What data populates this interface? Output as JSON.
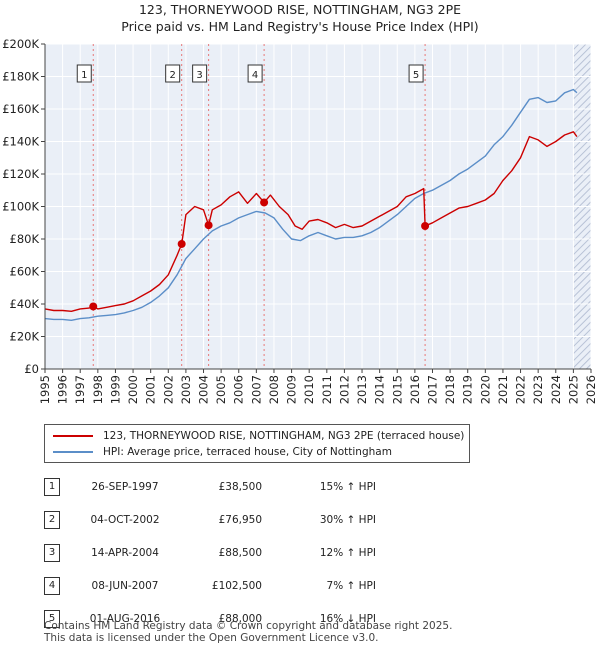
{
  "title_line1": "123, THORNEYWOOD RISE, NOTTINGHAM, NG3 2PE",
  "title_line2": "Price paid vs. HM Land Registry's House Price Index (HPI)",
  "colors": {
    "property": "#cc0000",
    "hpi": "#5b8ec8",
    "grid": "#cfd6e3",
    "plot_bg": "#eaeff7",
    "future_hatch": "#b8c2d6",
    "marker_line": "#e87878"
  },
  "legend": {
    "property_label": "123, THORNEYWOOD RISE, NOTTINGHAM, NG3 2PE (terraced house)",
    "hpi_label": "HPI: Average price, terraced house, City of Nottingham"
  },
  "sales": [
    {
      "num": "1",
      "date": "26-SEP-1997",
      "price": "£38,500",
      "hpi_diff": "15% ↑ HPI"
    },
    {
      "num": "2",
      "date": "04-OCT-2002",
      "price": "£76,950",
      "hpi_diff": "30% ↑ HPI"
    },
    {
      "num": "3",
      "date": "14-APR-2004",
      "price": "£88,500",
      "hpi_diff": "12% ↑ HPI"
    },
    {
      "num": "4",
      "date": "08-JUN-2007",
      "price": "£102,500",
      "hpi_diff": "7% ↑ HPI"
    },
    {
      "num": "5",
      "date": "01-AUG-2016",
      "price": "£88,000",
      "hpi_diff": "16% ↓ HPI"
    }
  ],
  "footer_line1": "Contains HM Land Registry data © Crown copyright and database right 2025.",
  "footer_line2": "This data is licensed under the Open Government Licence v3.0.",
  "chart_data": {
    "type": "line",
    "title": "123, THORNEYWOOD RISE, NOTTINGHAM, NG3 2PE",
    "subtitle": "Price paid vs. HM Land Registry's House Price Index (HPI)",
    "xlabel": "",
    "ylabel": "",
    "xlim": [
      1995,
      2026
    ],
    "ylim": [
      0,
      200000
    ],
    "x_ticks": [
      1995,
      1996,
      1997,
      1998,
      1999,
      2000,
      2001,
      2002,
      2003,
      2004,
      2005,
      2006,
      2007,
      2008,
      2009,
      2010,
      2011,
      2012,
      2013,
      2014,
      2015,
      2016,
      2017,
      2018,
      2019,
      2020,
      2021,
      2022,
      2023,
      2024,
      2025,
      2026
    ],
    "y_ticks": [
      0,
      20000,
      40000,
      60000,
      80000,
      100000,
      120000,
      140000,
      160000,
      180000,
      200000
    ],
    "y_tick_labels": [
      "£0",
      "£20K",
      "£40K",
      "£60K",
      "£80K",
      "£100K",
      "£120K",
      "£140K",
      "£160K",
      "£180K",
      "£200K"
    ],
    "future_start": 2025.0,
    "grid": true,
    "sale_markers": [
      {
        "label": "1",
        "x": 1997.74,
        "y": 38500
      },
      {
        "label": "2",
        "x": 2002.76,
        "y": 76950
      },
      {
        "label": "3",
        "x": 2004.29,
        "y": 88500
      },
      {
        "label": "4",
        "x": 2007.44,
        "y": 102500
      },
      {
        "label": "5",
        "x": 2016.58,
        "y": 88000
      }
    ],
    "series": [
      {
        "name": "123, THORNEYWOOD RISE, NOTTINGHAM, NG3 2PE (terraced house)",
        "color": "#cc0000",
        "x": [
          1995.0,
          1995.5,
          1996.0,
          1996.5,
          1997.0,
          1997.5,
          1997.74,
          1998.0,
          1998.5,
          1999.0,
          1999.5,
          2000.0,
          2000.5,
          2001.0,
          2001.5,
          2002.0,
          2002.5,
          2002.76,
          2003.0,
          2003.5,
          2004.0,
          2004.29,
          2004.5,
          2005.0,
          2005.5,
          2006.0,
          2006.5,
          2007.0,
          2007.44,
          2007.8,
          2008.3,
          2008.8,
          2009.2,
          2009.6,
          2010.0,
          2010.5,
          2011.0,
          2011.5,
          2012.0,
          2012.5,
          2013.0,
          2013.5,
          2014.0,
          2014.5,
          2015.0,
          2015.5,
          2016.0,
          2016.5,
          2016.58,
          2017.0,
          2017.5,
          2018.0,
          2018.5,
          2019.0,
          2019.5,
          2020.0,
          2020.5,
          2021.0,
          2021.5,
          2022.0,
          2022.5,
          2023.0,
          2023.5,
          2024.0,
          2024.5,
          2025.0,
          2025.2
        ],
        "y": [
          37000,
          36000,
          36000,
          35500,
          37000,
          37500,
          38500,
          37000,
          38000,
          39000,
          40000,
          42000,
          45000,
          48000,
          52000,
          58000,
          70000,
          76950,
          95000,
          100000,
          98000,
          88500,
          98000,
          101000,
          106000,
          109000,
          102000,
          108000,
          102500,
          107000,
          100000,
          95000,
          88000,
          86000,
          91000,
          92000,
          90000,
          87000,
          89000,
          87000,
          88000,
          91000,
          94000,
          97000,
          100000,
          106000,
          108000,
          111000,
          88000,
          90000,
          93000,
          96000,
          99000,
          100000,
          102000,
          104000,
          108000,
          116000,
          122000,
          130000,
          143000,
          141000,
          137000,
          140000,
          144000,
          146000,
          143000
        ]
      },
      {
        "name": "HPI: Average price, terraced house, City of Nottingham",
        "color": "#5b8ec8",
        "x": [
          1995.0,
          1995.5,
          1996.0,
          1996.5,
          1997.0,
          1997.5,
          1998.0,
          1998.5,
          1999.0,
          1999.5,
          2000.0,
          2000.5,
          2001.0,
          2001.5,
          2002.0,
          2002.5,
          2003.0,
          2003.5,
          2004.0,
          2004.5,
          2005.0,
          2005.5,
          2006.0,
          2006.5,
          2007.0,
          2007.5,
          2008.0,
          2008.5,
          2009.0,
          2009.5,
          2010.0,
          2010.5,
          2011.0,
          2011.5,
          2012.0,
          2012.5,
          2013.0,
          2013.5,
          2014.0,
          2014.5,
          2015.0,
          2015.5,
          2016.0,
          2016.5,
          2017.0,
          2017.5,
          2018.0,
          2018.5,
          2019.0,
          2019.5,
          2020.0,
          2020.5,
          2021.0,
          2021.5,
          2022.0,
          2022.5,
          2023.0,
          2023.5,
          2024.0,
          2024.5,
          2025.0,
          2025.2
        ],
        "y": [
          31000,
          30500,
          30500,
          30000,
          31000,
          31500,
          32500,
          33000,
          33500,
          34500,
          36000,
          38000,
          41000,
          45000,
          50000,
          58000,
          68000,
          74000,
          80000,
          85000,
          88000,
          90000,
          93000,
          95000,
          97000,
          96000,
          93000,
          86000,
          80000,
          79000,
          82000,
          84000,
          82000,
          80000,
          81000,
          81000,
          82000,
          84000,
          87000,
          91000,
          95000,
          100000,
          105000,
          108000,
          110000,
          113000,
          116000,
          120000,
          123000,
          127000,
          131000,
          138000,
          143000,
          150000,
          158000,
          166000,
          167000,
          164000,
          165000,
          170000,
          172000,
          170000
        ]
      }
    ]
  }
}
